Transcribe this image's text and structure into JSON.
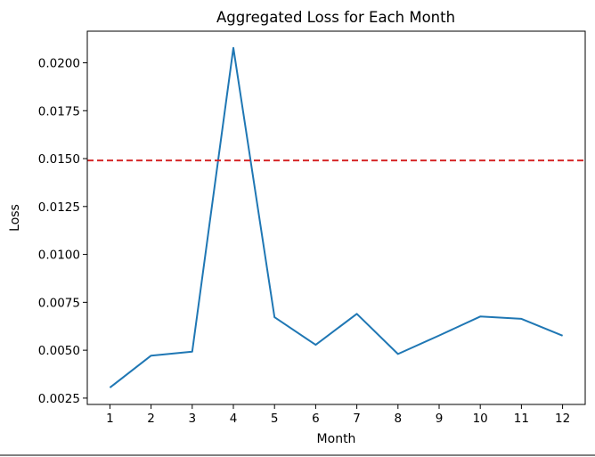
{
  "chart_data": {
    "type": "line",
    "title": "Aggregated Loss for Each Month",
    "xlabel": "Month",
    "ylabel": "Loss",
    "x": [
      1,
      2,
      3,
      4,
      5,
      6,
      7,
      8,
      9,
      10,
      11,
      12
    ],
    "series": [
      {
        "values": [
          0.00305,
          0.00472,
          0.00492,
          0.02078,
          0.00672,
          0.00528,
          0.0069,
          0.0048,
          0.00577,
          0.00676,
          0.00664,
          0.00576
        ],
        "color": "#1f77b4"
      }
    ],
    "threshold": {
      "value": 0.0149,
      "color": "#d62728",
      "style": "dashed"
    },
    "xticks": [
      "1",
      "2",
      "3",
      "4",
      "5",
      "6",
      "7",
      "8",
      "9",
      "10",
      "11",
      "12"
    ],
    "yticks": [
      0.0025,
      0.005,
      0.0075,
      0.01,
      0.0125,
      0.015,
      0.0175,
      0.02
    ],
    "ytick_labels": [
      "0.0025",
      "0.0050",
      "0.0075",
      "0.0100",
      "0.0125",
      "0.0150",
      "0.0175",
      "0.0200"
    ],
    "xlim": [
      0.45,
      12.55
    ],
    "ylim": [
      0.00217,
      0.02165
    ],
    "grid": false,
    "legend": "none"
  }
}
